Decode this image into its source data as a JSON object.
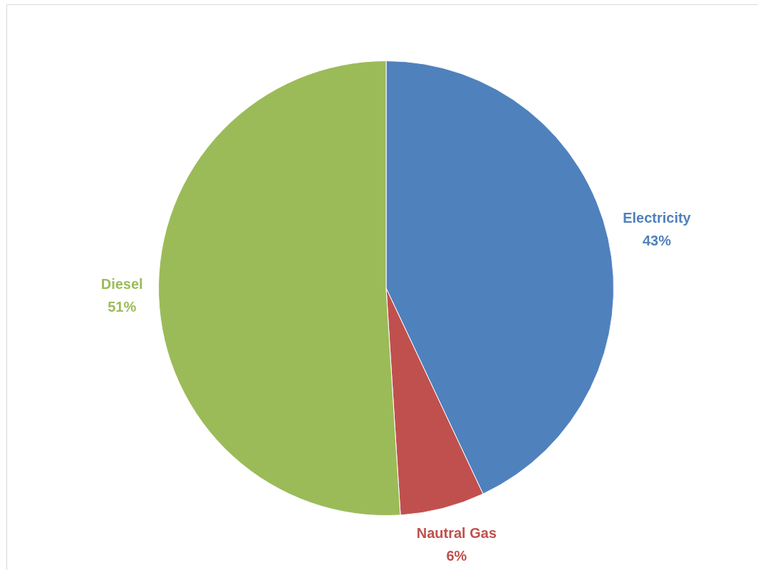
{
  "chart_data": {
    "type": "pie",
    "categories": [
      "Electricity",
      "Nautral Gas",
      "Diesel"
    ],
    "values": [
      43,
      6,
      51
    ],
    "colors": [
      "#4f81bd",
      "#c0504d",
      "#9bbb59"
    ],
    "value_labels": [
      "43%",
      "6%",
      "51%"
    ]
  }
}
